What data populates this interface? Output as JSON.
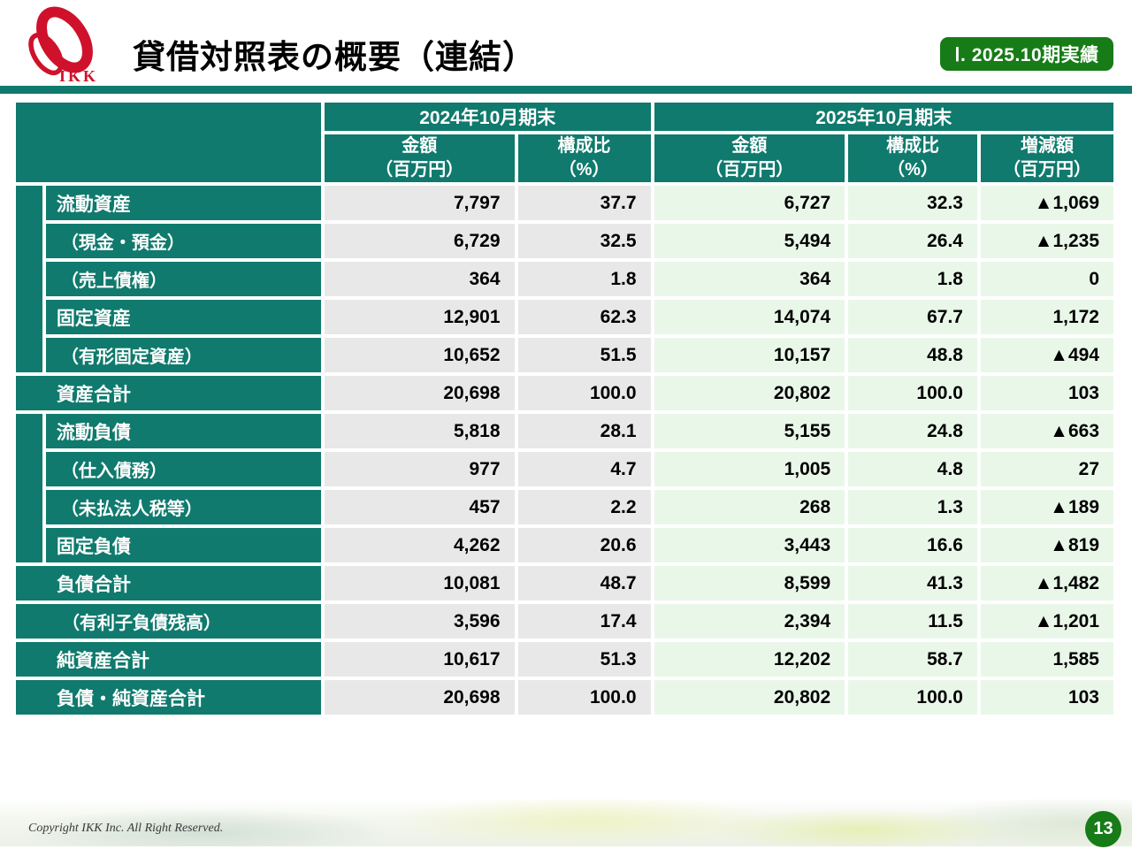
{
  "header": {
    "logo_text": "IKK",
    "title": "貸借対照表の概要（連結）",
    "badge": "Ⅰ. 2025.10期実績"
  },
  "table": {
    "period_headers": [
      "2024年10月期末",
      "2025年10月期末"
    ],
    "col_headers": {
      "amount": "金額",
      "amount_unit": "（百万円）",
      "ratio": "構成比",
      "ratio_unit": "（%）",
      "change": "増減額",
      "change_unit": "（百万円）"
    },
    "rows": [
      {
        "label": "流動資産",
        "type": "main",
        "strip_span": 5,
        "a24": "7,797",
        "r24": "37.7",
        "a25": "6,727",
        "r25": "32.3",
        "chg": "▲1,069"
      },
      {
        "label": "（現金・預金）",
        "type": "sub",
        "a24": "6,729",
        "r24": "32.5",
        "a25": "5,494",
        "r25": "26.4",
        "chg": "▲1,235"
      },
      {
        "label": "（売上債権）",
        "type": "sub",
        "a24": "364",
        "r24": "1.8",
        "a25": "364",
        "r25": "1.8",
        "chg": "0"
      },
      {
        "label": "固定資産",
        "type": "main",
        "a24": "12,901",
        "r24": "62.3",
        "a25": "14,074",
        "r25": "67.7",
        "chg": "1,172"
      },
      {
        "label": "（有形固定資産）",
        "type": "sub",
        "a24": "10,652",
        "r24": "51.5",
        "a25": "10,157",
        "r25": "48.8",
        "chg": "▲494"
      },
      {
        "label": "資産合計",
        "type": "total",
        "a24": "20,698",
        "r24": "100.0",
        "a25": "20,802",
        "r25": "100.0",
        "chg": "103"
      },
      {
        "label": "流動負債",
        "type": "main",
        "strip_span": 4,
        "a24": "5,818",
        "r24": "28.1",
        "a25": "5,155",
        "r25": "24.8",
        "chg": "▲663"
      },
      {
        "label": "（仕入債務）",
        "type": "sub",
        "a24": "977",
        "r24": "4.7",
        "a25": "1,005",
        "r25": "4.8",
        "chg": "27"
      },
      {
        "label": "（未払法人税等）",
        "type": "sub",
        "a24": "457",
        "r24": "2.2",
        "a25": "268",
        "r25": "1.3",
        "chg": "▲189"
      },
      {
        "label": "固定負債",
        "type": "main",
        "a24": "4,262",
        "r24": "20.6",
        "a25": "3,443",
        "r25": "16.6",
        "chg": "▲819"
      },
      {
        "label": "負債合計",
        "type": "total",
        "a24": "10,081",
        "r24": "48.7",
        "a25": "8,599",
        "r25": "41.3",
        "chg": "▲1,482"
      },
      {
        "label": "（有利子負債残高）",
        "type": "total-sub",
        "a24": "3,596",
        "r24": "17.4",
        "a25": "2,394",
        "r25": "11.5",
        "chg": "▲1,201"
      },
      {
        "label": "純資産合計",
        "type": "total",
        "a24": "10,617",
        "r24": "51.3",
        "a25": "12,202",
        "r25": "58.7",
        "chg": "1,585"
      },
      {
        "label": "負債・純資産合計",
        "type": "total",
        "a24": "20,698",
        "r24": "100.0",
        "a25": "20,802",
        "r25": "100.0",
        "chg": "103"
      }
    ]
  },
  "footer": {
    "copyright": "Copyright IKK Inc. All Right Reserved.",
    "page": "13"
  },
  "colors": {
    "teal": "#0f7a6d",
    "badge_green": "#177c17",
    "logo_red": "#d0112b",
    "cell_gray": "#e8e8e8",
    "cell_green": "#e9f7e9"
  }
}
